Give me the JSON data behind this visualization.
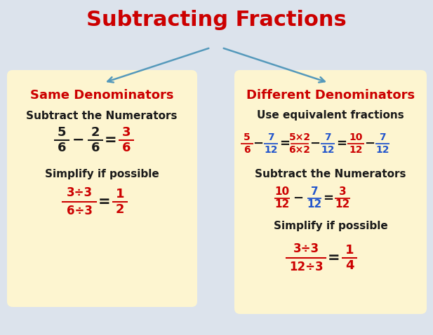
{
  "title": "Subtracting Fractions",
  "title_color": "#cc0000",
  "title_fontsize": 22,
  "background_color": "#dce3ec",
  "box_color": "#fdf5d0",
  "left_box": {
    "header": "Same Denominators",
    "header_color": "#cc0000",
    "step1_label": "Subtract the Numerators",
    "step2_label": "Simplify if possible"
  },
  "right_box": {
    "header": "Different Denominators",
    "header_color": "#cc0000",
    "step1_label": "Use equivalent fractions",
    "step2_label": "Subtract the Numerators",
    "step3_label": "Simplify if possible"
  },
  "arrow_color": "#5599bb",
  "red": "#cc0000",
  "blue": "#2255cc",
  "black": "#1a1a1a"
}
